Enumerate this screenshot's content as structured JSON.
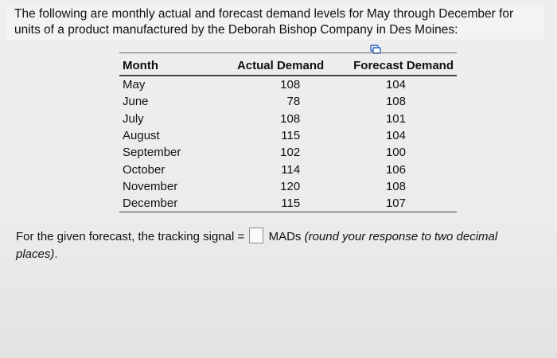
{
  "intro": "The following are monthly actual and forecast demand levels for May through December for units of a product manufactured by the Deborah Bishop Company in Des Moines:",
  "table": {
    "headers": [
      "Month",
      "Actual Demand",
      "Forecast Demand"
    ],
    "rows": [
      {
        "month": "May",
        "actual": "108",
        "forecast": "104"
      },
      {
        "month": "June",
        "actual": "78",
        "forecast": "108"
      },
      {
        "month": "July",
        "actual": "108",
        "forecast": "101"
      },
      {
        "month": "August",
        "actual": "115",
        "forecast": "104"
      },
      {
        "month": "September",
        "actual": "102",
        "forecast": "100"
      },
      {
        "month": "October",
        "actual": "114",
        "forecast": "106"
      },
      {
        "month": "November",
        "actual": "120",
        "forecast": "108"
      },
      {
        "month": "December",
        "actual": "115",
        "forecast": "107"
      }
    ]
  },
  "question": {
    "prefix": "For the given forecast, the tracking signal =",
    "suffix": "MADs",
    "note": "(round your response to two decimal places)",
    "period": "."
  },
  "icons": {
    "copy": "copy-icon"
  }
}
